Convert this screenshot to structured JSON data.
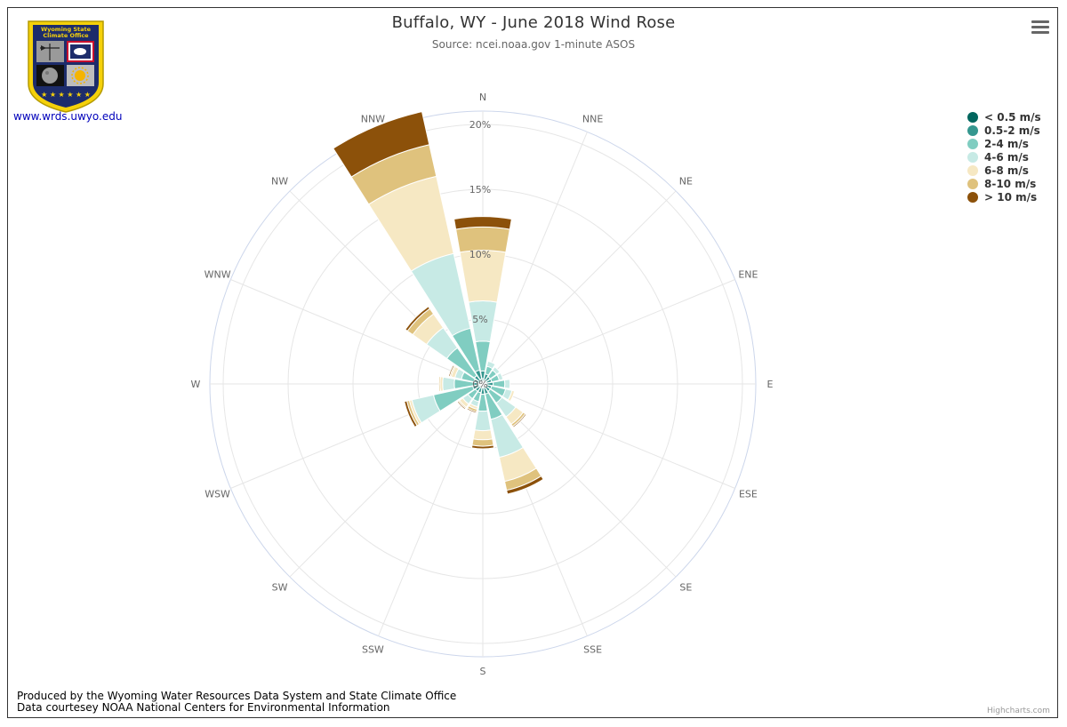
{
  "header": {
    "title": "Buffalo, WY - June 2018 Wind Rose",
    "subtitle": "Source: ncei.noaa.gov 1-minute ASOS"
  },
  "logo": {
    "text_line1": "Wyoming State",
    "text_line2": "Climate Office"
  },
  "site_link": "www.wrds.uwyo.edu",
  "footer": {
    "line1": "Produced by the Wyoming Water Resources Data System and State Climate Office",
    "line2": "Data courtesey NOAA National Centers for Environmental Information",
    "credit": "Highcharts.com"
  },
  "menu_icon": "hamburger-menu-icon",
  "chart_data": {
    "type": "bar",
    "polar": true,
    "stacked": true,
    "legend_position": "top-right",
    "categories": [
      "N",
      "NNE",
      "NE",
      "ENE",
      "E",
      "ESE",
      "SE",
      "SSE",
      "S",
      "SSW",
      "SW",
      "WSW",
      "W",
      "WNW",
      "NW",
      "NNW"
    ],
    "yaxis": {
      "min": 0,
      "max": 20,
      "ticks": [
        0,
        5,
        10,
        15,
        20
      ],
      "tick_suffix": "%"
    },
    "series": [
      {
        "name": "< 0.5 m/s",
        "color": "#01665e",
        "values": [
          0.4,
          0.3,
          0.3,
          0.3,
          0.3,
          0.3,
          0.3,
          0.3,
          0.3,
          0.3,
          0.3,
          0.3,
          0.3,
          0.3,
          0.3,
          0.4
        ]
      },
      {
        "name": "0.5-2 m/s",
        "color": "#35978f",
        "values": [
          0.6,
          0.5,
          0.4,
          0.4,
          0.5,
          0.4,
          0.4,
          0.5,
          0.5,
          0.4,
          0.4,
          0.5,
          0.4,
          0.4,
          0.5,
          0.7
        ]
      },
      {
        "name": "2-4 m/s",
        "color": "#80cdc1",
        "values": [
          2.3,
          0.6,
          0.6,
          0.6,
          0.9,
          1.1,
          1.1,
          2.0,
          1.3,
          0.7,
          0.7,
          3.1,
          1.5,
          1.0,
          2.6,
          3.3
        ]
      },
      {
        "name": "4-6 m/s",
        "color": "#c7eae5",
        "values": [
          3.1,
          0.4,
          0.3,
          0.3,
          0.4,
          0.5,
          1.3,
          3.0,
          1.5,
          0.4,
          0.5,
          1.7,
          0.9,
          0.5,
          1.9,
          5.9
        ]
      },
      {
        "name": "6-8 m/s",
        "color": "#f6e8c3",
        "values": [
          3.9,
          0.0,
          0.0,
          0.0,
          0.0,
          0.2,
          0.7,
          1.9,
          0.7,
          0.2,
          0.3,
          0.2,
          0.2,
          0.3,
          1.3,
          6.1
        ]
      },
      {
        "name": "8-10 m/s",
        "color": "#dfc27d",
        "values": [
          1.8,
          0.0,
          0.0,
          0.0,
          0.0,
          0.0,
          0.2,
          0.7,
          0.5,
          0.2,
          0.1,
          0.2,
          0.1,
          0.1,
          0.5,
          2.5
        ]
      },
      {
        "name": "> 10 m/s",
        "color": "#8c510a",
        "values": [
          0.8,
          0.0,
          0.0,
          0.0,
          0.0,
          0.0,
          0.1,
          0.3,
          0.2,
          0.1,
          0.1,
          0.2,
          0.0,
          0.1,
          0.2,
          2.6
        ]
      }
    ]
  }
}
